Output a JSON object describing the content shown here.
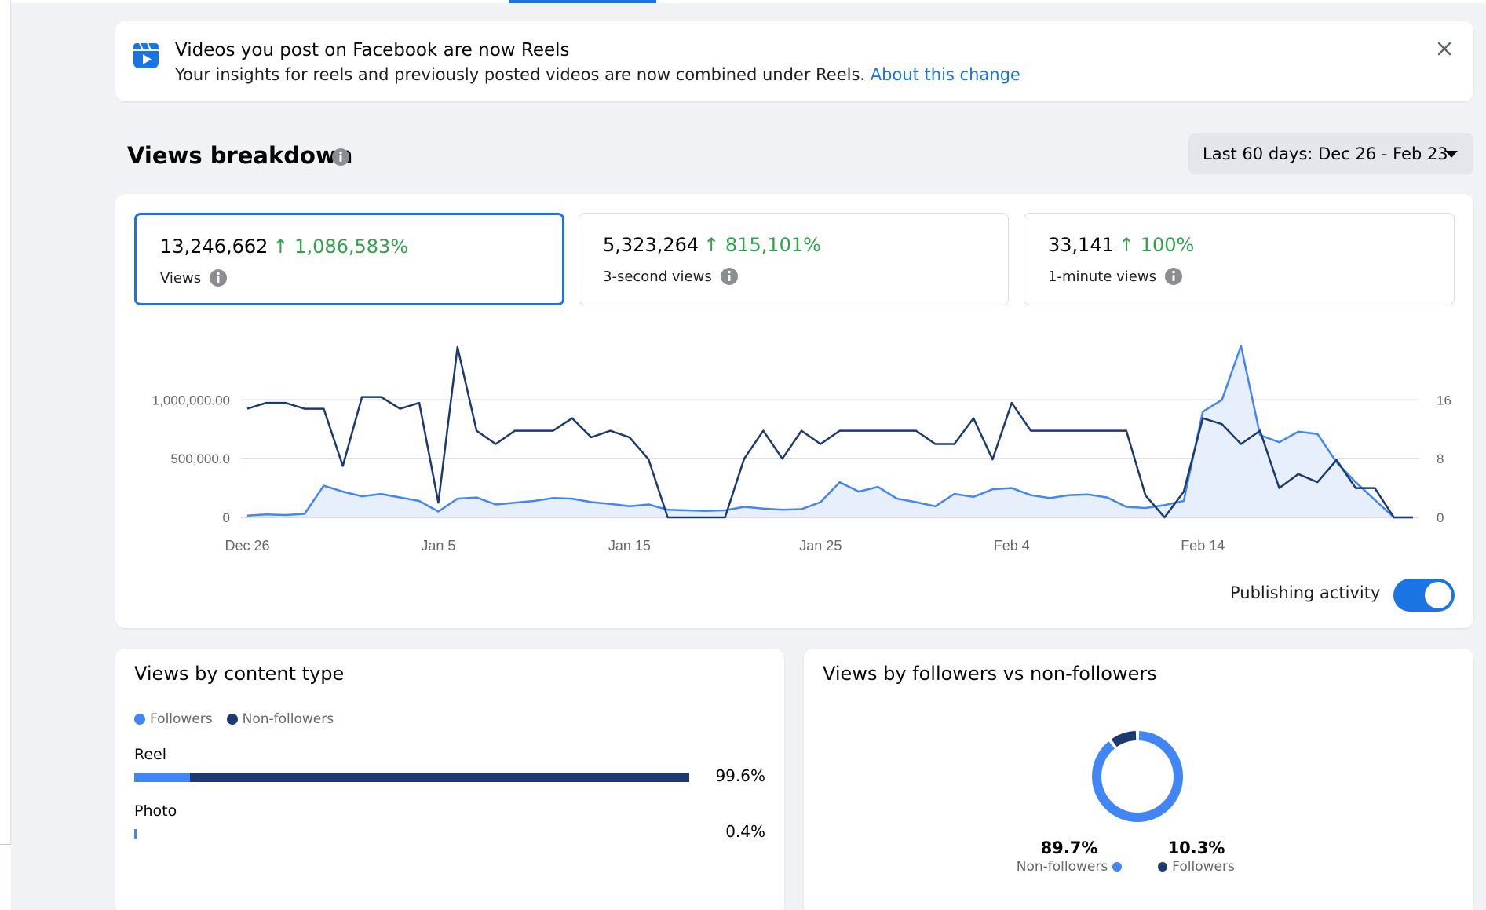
{
  "banner": {
    "title": "Videos you post on Facebook are now Reels",
    "text": "Your insights for reels and previously posted videos are now combined under Reels.",
    "link": "About this change"
  },
  "section": {
    "title": "Views breakdown",
    "date_range": "Last 60 days: Dec 26 - Feb 23"
  },
  "metrics": [
    {
      "value": "13,246,662",
      "change": "1,086,583%",
      "label": "Views"
    },
    {
      "value": "5,323,264",
      "change": "815,101%",
      "label": "3-second views"
    },
    {
      "value": "33,141",
      "change": "100%",
      "label": "1-minute views"
    }
  ],
  "publishing_activity": {
    "label": "Publishing activity",
    "enabled": true
  },
  "colors": {
    "primary": "#1b74e4",
    "followers": "#4285f4",
    "non_followers": "#1c3a6e",
    "positive": "#31a24c"
  },
  "chart_data": {
    "type": "line",
    "x_ticks": [
      "Dec 26",
      "Jan 5",
      "Jan 15",
      "Jan 25",
      "Feb 4",
      "Feb 14"
    ],
    "y_left_ticks": [
      "0",
      "500,000.0",
      "1,000,000.00"
    ],
    "y_right_ticks": [
      "0",
      "8",
      "16"
    ],
    "y_left_range": [
      0,
      1450000
    ],
    "y_right_range": [
      0,
      23.2
    ],
    "series": [
      {
        "axis": "right",
        "style": "line",
        "values": [
          14.8,
          15.6,
          15.6,
          14.8,
          14.8,
          7,
          16.4,
          16.4,
          14.8,
          15.6,
          2,
          23.2,
          11.8,
          10,
          11.8,
          11.8,
          11.8,
          13.5,
          10.9,
          11.8,
          10.9,
          7.9,
          0,
          0,
          0,
          0,
          8,
          11.8,
          8,
          11.8,
          10,
          11.8,
          11.8,
          11.8,
          11.8,
          11.8,
          10,
          10,
          13.5,
          7.9,
          15.6,
          11.8,
          11.8,
          11.8,
          11.8,
          11.8,
          11.8,
          3,
          0,
          3.5,
          13.5,
          12.7,
          10,
          11.8,
          4,
          5.9,
          4.8,
          7.8,
          4,
          4,
          0,
          0
        ]
      },
      {
        "axis": "left",
        "style": "area",
        "values": [
          15000,
          25000,
          20000,
          30000,
          270000,
          220000,
          180000,
          200000,
          170000,
          140000,
          50000,
          160000,
          170000,
          110000,
          125000,
          140000,
          165000,
          160000,
          130000,
          115000,
          95000,
          110000,
          65000,
          60000,
          55000,
          60000,
          90000,
          75000,
          65000,
          70000,
          130000,
          300000,
          220000,
          260000,
          160000,
          130000,
          95000,
          200000,
          175000,
          240000,
          250000,
          190000,
          165000,
          190000,
          195000,
          170000,
          90000,
          80000,
          105000,
          140000,
          900000,
          1000000,
          1460000,
          700000,
          640000,
          730000,
          710000,
          470000,
          300000,
          150000,
          0,
          0
        ]
      }
    ]
  },
  "content_type": {
    "title": "Views by content type",
    "legend": [
      "Followers",
      "Non-followers"
    ],
    "rows": [
      {
        "label": "Reel",
        "percent": "99.6%",
        "followers_share": 0.1,
        "total_share": 0.996
      },
      {
        "label": "Photo",
        "percent": "0.4%",
        "followers_share": 1.0,
        "total_share": 0.004
      }
    ]
  },
  "followers_split": {
    "title": "Views by followers vs non-followers",
    "non_followers": {
      "percent": "89.7%",
      "label": "Non-followers",
      "value": 0.897
    },
    "followers": {
      "percent": "10.3%",
      "label": "Followers",
      "value": 0.103
    }
  }
}
